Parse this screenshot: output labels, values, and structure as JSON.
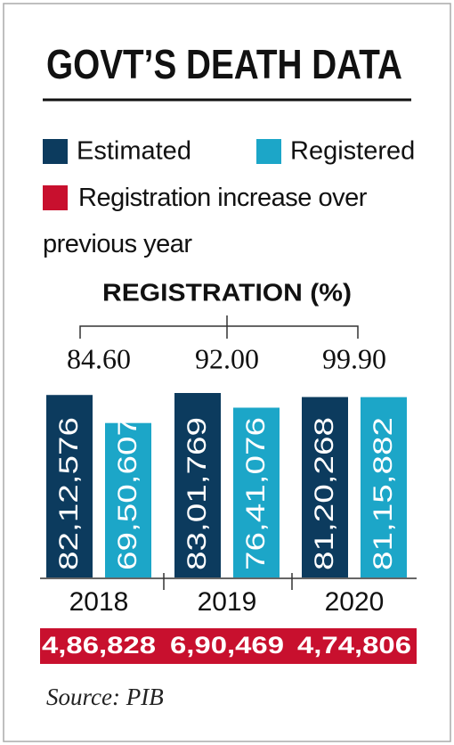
{
  "chart_data": {
    "type": "bar",
    "title": "GOVT’S DEATH DATA",
    "categories": [
      "2018",
      "2019",
      "2020"
    ],
    "series": [
      {
        "name": "Estimated",
        "color": "#0c3b5e",
        "values": [
          8212576,
          8301769,
          8120268
        ],
        "value_labels": [
          "82,12,576",
          "83,01,769",
          "81,20,268"
        ]
      },
      {
        "name": "Registered",
        "color": "#1ca6c8",
        "values": [
          6950607,
          7641076,
          8115882
        ],
        "value_labels": [
          "69,50,607",
          "76,41,076",
          "81,15,882"
        ]
      }
    ],
    "registration": {
      "title": "REGISTRATION (%)",
      "values": [
        84.6,
        92,
        99.9
      ],
      "value_labels": [
        "84.60",
        "92.00",
        "99.90"
      ]
    },
    "increase": {
      "name": "Registration increase over previous year",
      "color": "#c8102e",
      "values": [
        486828,
        690469,
        474806
      ],
      "value_labels": [
        "4,86,828",
        "6,90,469",
        "4,74,806"
      ]
    },
    "source": "Source: PIB"
  }
}
